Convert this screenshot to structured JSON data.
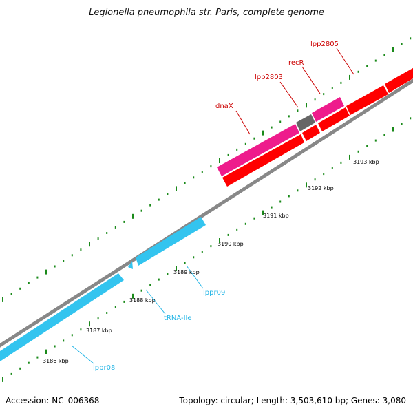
{
  "title": "Legionella pneumophila str. Paris, complete genome",
  "footer": {
    "accession": "Accession: NC_006368",
    "summary": "Topology: circular; Length: 3,503,610 bp; Genes: 3,080"
  },
  "colors": {
    "backbone": "#888888",
    "ticks": "#1a8a1a",
    "forward_gene": "#ff0000",
    "forward_highlight": "#ee1c8c",
    "reverse_gene": "#33c4ef",
    "grey_gene": "#666666",
    "forward_label": "#cc0000",
    "reverse_label": "#22b5e6"
  },
  "scale_labels": [
    "3186 kbp",
    "3187 kbp",
    "3188 kbp",
    "3189 kbp",
    "3190 kbp",
    "3191 kbp",
    "3192 kbp",
    "3193 kbp"
  ],
  "gene_labels": {
    "dnaX": "dnaX",
    "lpp2803": "lpp2803",
    "recR": "recR",
    "lpp2805": "lpp2805",
    "lppr09": "lppr09",
    "trna_ile": "tRNA-Ile",
    "lppr08": "lppr08"
  }
}
